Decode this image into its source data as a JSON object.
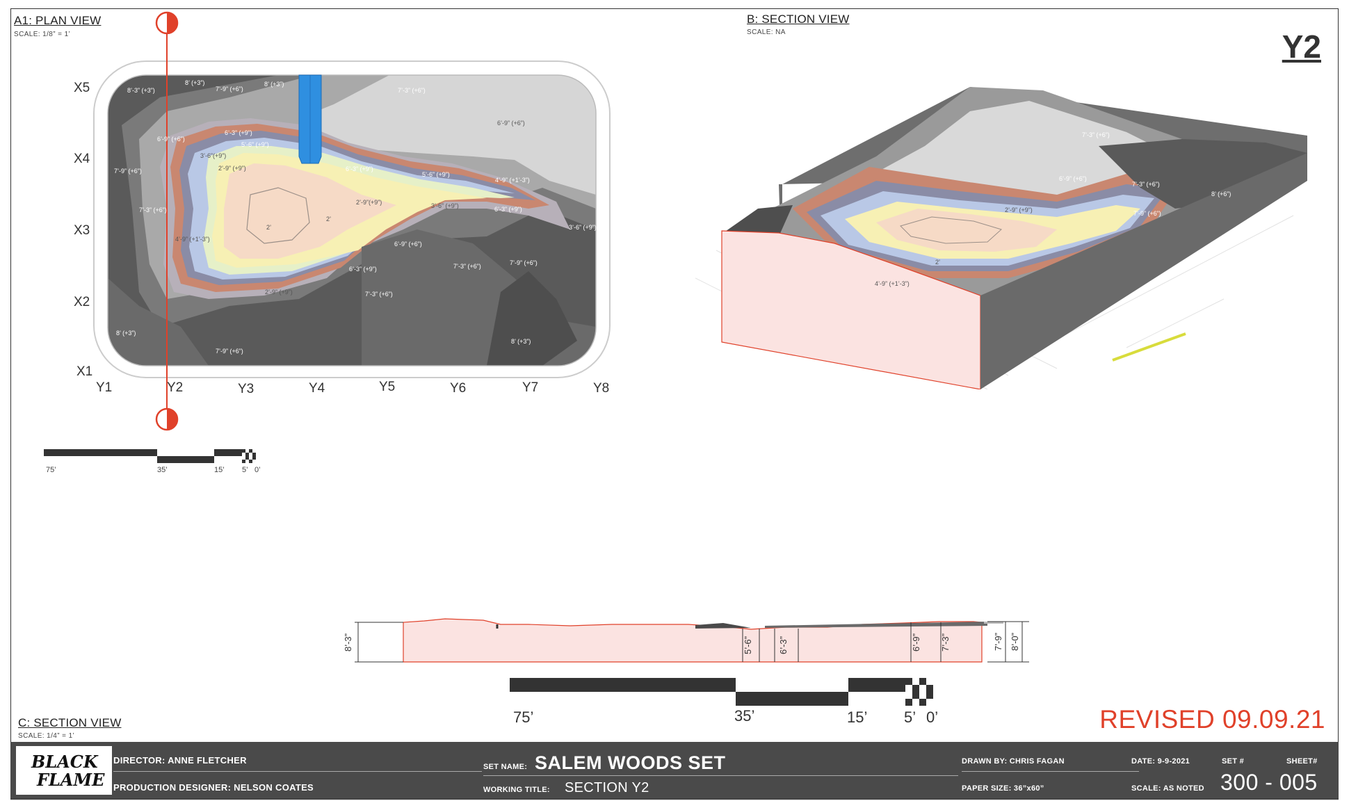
{
  "sheet": {
    "code": "Y2",
    "revised": "REVISED 09.09.21"
  },
  "plan_view": {
    "title": "A1: PLAN VIEW",
    "scale": "SCALE: 1/8” = 1’",
    "rows": [
      "X5",
      "X4",
      "X3",
      "X2",
      "X1"
    ],
    "cols": [
      "Y1",
      "Y2",
      "Y3",
      "Y4",
      "Y5",
      "Y6",
      "Y7",
      "Y8"
    ],
    "labels": [
      "8’-3” (+3”)",
      "8’ (+3”)",
      "7’-9” (+6”)",
      "8’ (+3”)",
      "7’-3” (+6”)",
      "6’-9” (+6”)",
      "6’-3” (+9”)",
      "5’-6” (+9”)",
      "6’-9” (+6”)",
      "3’-6”(+9”)",
      "2’-9” (+9”)",
      "6’-3” (+9”)",
      "5’-6” (+9”)",
      "4’-9” (+1’-3”)",
      "7’-9” (+6”)",
      "2’-9”(+9”)",
      "3’-6” (+9”)",
      "6’-3” (+9”)",
      "7’-3” (+6”)",
      "2’",
      "2’",
      "3’-6” (+9”)",
      "4’-9” (+1’-3”)",
      "6’-9” (+6”)",
      "7’-3” (+6”)",
      "7’-9” (+6”)",
      "6’-3” (+9”)",
      "2’-9” (+9”)",
      "7’-3” (+6”)",
      "8’ (+3”)",
      "7’-9” (+6”)",
      "8’ (+3”)"
    ],
    "scale_bar": [
      "75’",
      "35’",
      "15’",
      "5’",
      "0’"
    ]
  },
  "section_b": {
    "title": "B: SECTION VIEW",
    "scale": "SCALE: NA",
    "labels": [
      "7’-3” (+6”)",
      "6’-9” (+6”)",
      "7’-3” (+6”)",
      "8’ (+6”)",
      "7’-9” (+6”)",
      "2’-9” (+9”)",
      "2’",
      "4’-9” (+1’-3”)"
    ]
  },
  "section_c": {
    "title": "C: SECTION VIEW",
    "scale": "SCALE: 1/4” = 1’",
    "dims": [
      "8’-3”",
      "5’-6”",
      "6’-3”",
      "6’-9”",
      "7’-3”",
      "7’-9”",
      "8’-0”"
    ],
    "scale_bar": [
      "75’",
      "35’",
      "15’",
      "5’",
      "0’"
    ]
  },
  "title_block": {
    "logo_line1": "BLACK",
    "logo_line2": "FLAME",
    "director": "DIRECTOR:  ANNE FLETCHER",
    "designer": "PRODUCTION DESIGNER: NELSON COATES",
    "set_name_label": "SET NAME:",
    "set_name": "SALEM WOODS SET",
    "working_title_label": "WORKING TITLE:",
    "working_title": "SECTION Y2",
    "drawn_by": "DRAWN BY: CHRIS FAGAN",
    "paper_size": "PAPER SIZE: 36”x60”",
    "date": "DATE: 9-9-2021",
    "scale": "SCALE: AS NOTED",
    "set_no_label": "SET #",
    "sheet_no_label": "SHEET#",
    "sheet_number": "300 - 005"
  },
  "colors": {
    "accent_red": "#e0412a",
    "title_block": "#4a4a4a",
    "highlight_blue": "#2f8fe0"
  }
}
